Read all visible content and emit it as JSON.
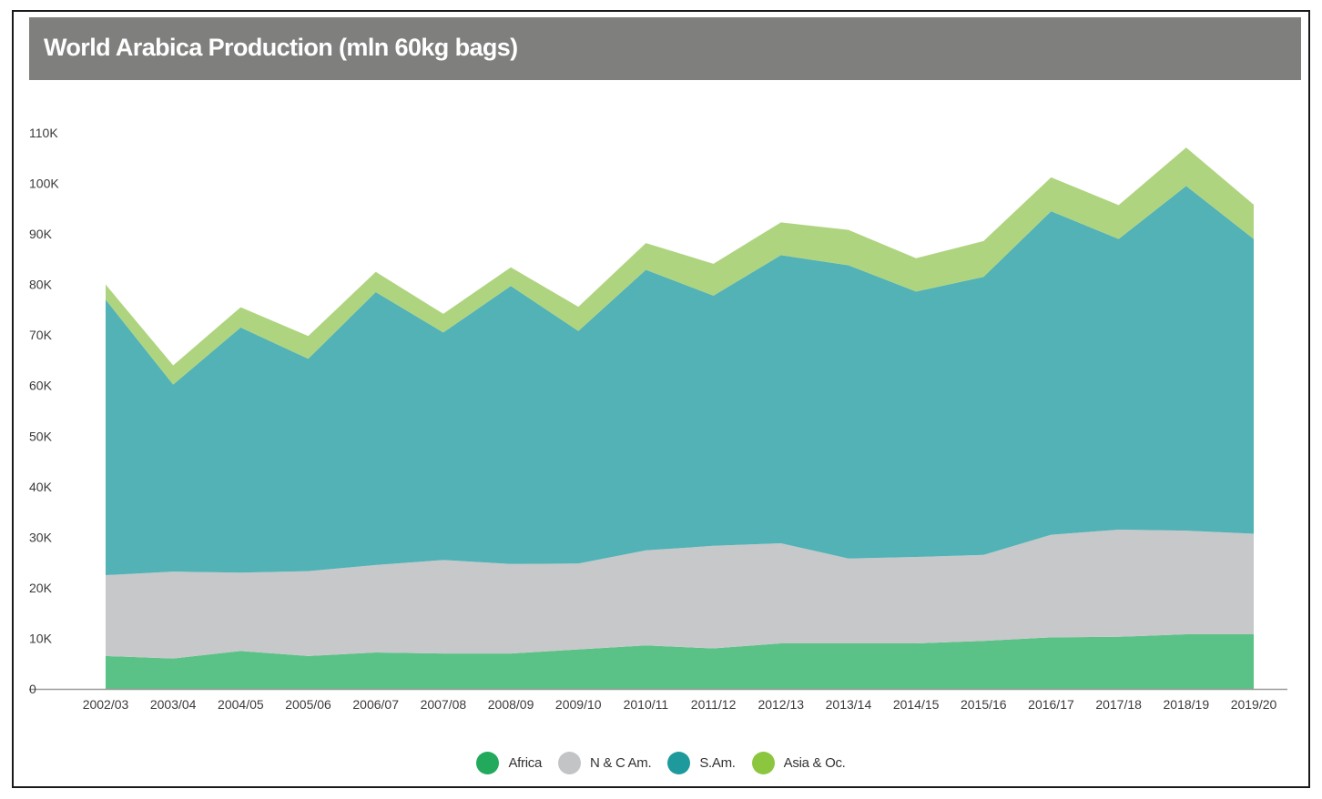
{
  "chart_data": {
    "type": "area",
    "stacked": true,
    "title": "World Arabica Production (mln 60kg bags)",
    "categories": [
      "2002/03",
      "2003/04",
      "2004/05",
      "2005/06",
      "2006/07",
      "2007/08",
      "2008/09",
      "2009/10",
      "2010/11",
      "2011/12",
      "2012/13",
      "2013/14",
      "2014/15",
      "2015/16",
      "2016/17",
      "2017/18",
      "2018/19",
      "2019/20"
    ],
    "series": [
      {
        "name": "Africa",
        "color": "#5ac286",
        "legend_color": "#22a95b",
        "values": [
          6500,
          6000,
          7500,
          6500,
          7200,
          7000,
          7000,
          7800,
          8600,
          8000,
          9000,
          9000,
          9000,
          9500,
          10200,
          10300,
          10800,
          10800
        ]
      },
      {
        "name": "N & C Am.",
        "color": "#c7c8ca",
        "legend_color": "#c3c4c6",
        "values": [
          16000,
          17200,
          15500,
          16800,
          17300,
          18500,
          17700,
          17000,
          18800,
          20300,
          19800,
          16800,
          17100,
          17000,
          20300,
          21200,
          20500,
          19900
        ]
      },
      {
        "name": "S.Am.",
        "color": "#52b2b5",
        "legend_color": "#1e9a9c",
        "values": [
          54500,
          37000,
          48500,
          42000,
          54000,
          45000,
          55000,
          46000,
          55500,
          49500,
          57000,
          58000,
          52500,
          55000,
          64000,
          57500,
          68200,
          58300
        ]
      },
      {
        "name": "Asia & Oc.",
        "color": "#afd47f",
        "legend_color": "#8cc63f",
        "values": [
          3000,
          3800,
          4000,
          4500,
          4000,
          3700,
          3700,
          4800,
          5300,
          6300,
          6500,
          7000,
          6600,
          7100,
          6700,
          6700,
          7600,
          6800
        ]
      }
    ],
    "yaxis": {
      "min": 0,
      "max": 110000,
      "step": 10000,
      "tick_labels": [
        "0",
        "10K",
        "20K",
        "30K",
        "40K",
        "50K",
        "60K",
        "70K",
        "80K",
        "90K",
        "100K",
        "110K"
      ]
    },
    "grid": false,
    "legend_position": "bottom-center",
    "colors": {
      "title_bar": "#7f807e",
      "axis_line": "#9a9a9a",
      "tick_text": "#3b3b3b"
    }
  }
}
